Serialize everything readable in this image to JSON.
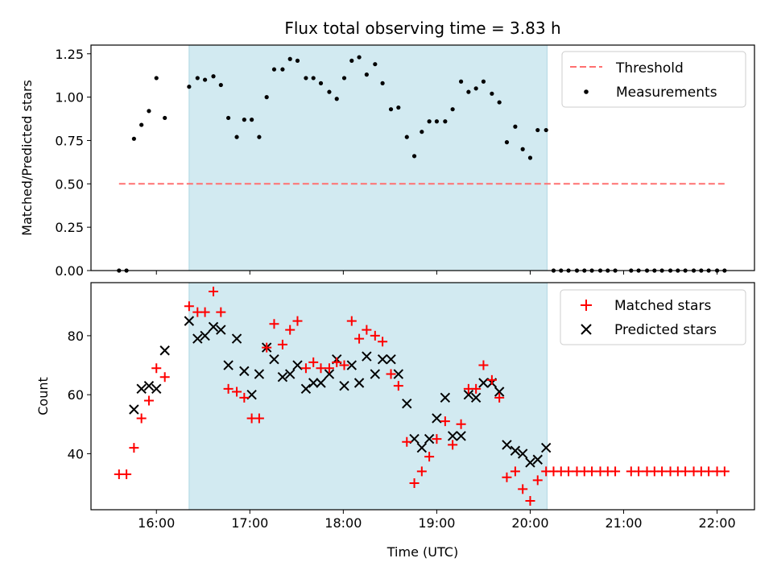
{
  "title": "Flux total observing time = 3.83 h",
  "colors": {
    "highlight": "#add8e6",
    "threshold": "#ff7070",
    "matched": "#ff0000",
    "predicted": "#000000",
    "measurement": "#000000"
  },
  "chart_data": [
    {
      "type": "scatter",
      "ylabel": "Matched/Predicted stars",
      "xlabel": "",
      "x_unit": "hours UTC",
      "xlim": [
        15.3,
        22.4
      ],
      "ylim": [
        0,
        1.3
      ],
      "xticks": [
        16,
        17,
        18,
        19,
        20,
        21,
        22
      ],
      "yticks": [
        0.0,
        0.25,
        0.5,
        0.75,
        1.0,
        1.25
      ],
      "ytick_labels": [
        "0.00",
        "0.25",
        "0.50",
        "0.75",
        "1.00",
        "1.25"
      ],
      "highlight_span": [
        16.35,
        20.18
      ],
      "legend": {
        "position": "top-right",
        "entries": [
          "Threshold",
          "Measurements"
        ]
      },
      "threshold": {
        "name": "Threshold",
        "value": 0.5,
        "x_range": [
          15.6,
          22.1
        ]
      },
      "series": [
        {
          "name": "Measurements",
          "points": [
            [
              15.6,
              0.0
            ],
            [
              15.68,
              0.0
            ],
            [
              15.76,
              0.76
            ],
            [
              15.84,
              0.84
            ],
            [
              15.92,
              0.92
            ],
            [
              16.0,
              1.11
            ],
            [
              16.09,
              0.88
            ],
            [
              16.35,
              1.06
            ],
            [
              16.44,
              1.11
            ],
            [
              16.52,
              1.1
            ],
            [
              16.61,
              1.12
            ],
            [
              16.69,
              1.07
            ],
            [
              16.77,
              0.88
            ],
            [
              16.86,
              0.77
            ],
            [
              16.94,
              0.87
            ],
            [
              17.02,
              0.87
            ],
            [
              17.1,
              0.77
            ],
            [
              17.18,
              1.0
            ],
            [
              17.26,
              1.16
            ],
            [
              17.35,
              1.16
            ],
            [
              17.43,
              1.22
            ],
            [
              17.51,
              1.21
            ],
            [
              17.6,
              1.11
            ],
            [
              17.68,
              1.11
            ],
            [
              17.76,
              1.08
            ],
            [
              17.85,
              1.03
            ],
            [
              17.93,
              0.99
            ],
            [
              18.01,
              1.11
            ],
            [
              18.09,
              1.21
            ],
            [
              18.17,
              1.23
            ],
            [
              18.25,
              1.13
            ],
            [
              18.34,
              1.19
            ],
            [
              18.42,
              1.08
            ],
            [
              18.51,
              0.93
            ],
            [
              18.59,
              0.94
            ],
            [
              18.68,
              0.77
            ],
            [
              18.76,
              0.66
            ],
            [
              18.84,
              0.8
            ],
            [
              18.92,
              0.86
            ],
            [
              19.0,
              0.86
            ],
            [
              19.09,
              0.86
            ],
            [
              19.17,
              0.93
            ],
            [
              19.26,
              1.09
            ],
            [
              19.34,
              1.03
            ],
            [
              19.42,
              1.05
            ],
            [
              19.5,
              1.09
            ],
            [
              19.59,
              1.02
            ],
            [
              19.67,
              0.97
            ],
            [
              19.75,
              0.74
            ],
            [
              19.84,
              0.83
            ],
            [
              19.92,
              0.7
            ],
            [
              20.0,
              0.65
            ],
            [
              20.08,
              0.81
            ],
            [
              20.17,
              0.81
            ],
            [
              20.25,
              0.0
            ],
            [
              20.33,
              0.0
            ],
            [
              20.41,
              0.0
            ],
            [
              20.5,
              0.0
            ],
            [
              20.58,
              0.0
            ],
            [
              20.66,
              0.0
            ],
            [
              20.75,
              0.0
            ],
            [
              20.83,
              0.0
            ],
            [
              20.91,
              0.0
            ],
            [
              21.08,
              0.0
            ],
            [
              21.16,
              0.0
            ],
            [
              21.25,
              0.0
            ],
            [
              21.33,
              0.0
            ],
            [
              21.41,
              0.0
            ],
            [
              21.5,
              0.0
            ],
            [
              21.58,
              0.0
            ],
            [
              21.66,
              0.0
            ],
            [
              21.75,
              0.0
            ],
            [
              21.83,
              0.0
            ],
            [
              21.91,
              0.0
            ],
            [
              22.0,
              0.0
            ],
            [
              22.08,
              0.0
            ]
          ]
        }
      ]
    },
    {
      "type": "scatter",
      "ylabel": "Count",
      "xlabel": "Time (UTC)",
      "x_unit": "hours UTC",
      "xlim": [
        15.3,
        22.4
      ],
      "ylim": [
        21,
        98
      ],
      "xticks": [
        16,
        17,
        18,
        19,
        20,
        21,
        22
      ],
      "xtick_labels": [
        "16:00",
        "17:00",
        "18:00",
        "19:00",
        "20:00",
        "21:00",
        "22:00"
      ],
      "yticks": [
        40,
        60,
        80
      ],
      "ytick_labels": [
        "40",
        "60",
        "80"
      ],
      "highlight_span": [
        16.35,
        20.18
      ],
      "legend": {
        "position": "top-right",
        "entries": [
          "Matched stars",
          "Predicted stars"
        ]
      },
      "series": [
        {
          "name": "Matched stars",
          "marker": "plus",
          "points": [
            [
              15.6,
              33
            ],
            [
              15.68,
              33
            ],
            [
              15.76,
              42
            ],
            [
              15.84,
              52
            ],
            [
              15.92,
              58
            ],
            [
              16.0,
              69
            ],
            [
              16.09,
              66
            ],
            [
              16.35,
              90
            ],
            [
              16.44,
              88
            ],
            [
              16.52,
              88
            ],
            [
              16.61,
              95
            ],
            [
              16.69,
              88
            ],
            [
              16.77,
              62
            ],
            [
              16.86,
              61
            ],
            [
              16.94,
              59
            ],
            [
              17.02,
              52
            ],
            [
              17.1,
              52
            ],
            [
              17.18,
              76
            ],
            [
              17.26,
              84
            ],
            [
              17.35,
              77
            ],
            [
              17.43,
              82
            ],
            [
              17.51,
              85
            ],
            [
              17.6,
              69
            ],
            [
              17.68,
              71
            ],
            [
              17.76,
              69
            ],
            [
              17.85,
              69
            ],
            [
              17.93,
              71
            ],
            [
              18.01,
              70
            ],
            [
              18.09,
              85
            ],
            [
              18.17,
              79
            ],
            [
              18.25,
              82
            ],
            [
              18.34,
              80
            ],
            [
              18.42,
              78
            ],
            [
              18.51,
              67
            ],
            [
              18.59,
              63
            ],
            [
              18.68,
              44
            ],
            [
              18.76,
              30
            ],
            [
              18.84,
              34
            ],
            [
              18.92,
              39
            ],
            [
              19.0,
              45
            ],
            [
              19.09,
              51
            ],
            [
              19.17,
              43
            ],
            [
              19.26,
              50
            ],
            [
              19.34,
              62
            ],
            [
              19.42,
              62
            ],
            [
              19.5,
              70
            ],
            [
              19.59,
              65
            ],
            [
              19.67,
              59
            ],
            [
              19.75,
              32
            ],
            [
              19.84,
              34
            ],
            [
              19.92,
              28
            ],
            [
              20.0,
              24
            ],
            [
              20.08,
              31
            ],
            [
              20.17,
              34
            ],
            [
              20.25,
              34
            ],
            [
              20.33,
              34
            ],
            [
              20.41,
              34
            ],
            [
              20.5,
              34
            ],
            [
              20.58,
              34
            ],
            [
              20.66,
              34
            ],
            [
              20.75,
              34
            ],
            [
              20.83,
              34
            ],
            [
              20.91,
              34
            ],
            [
              21.08,
              34
            ],
            [
              21.16,
              34
            ],
            [
              21.25,
              34
            ],
            [
              21.33,
              34
            ],
            [
              21.41,
              34
            ],
            [
              21.5,
              34
            ],
            [
              21.58,
              34
            ],
            [
              21.66,
              34
            ],
            [
              21.75,
              34
            ],
            [
              21.83,
              34
            ],
            [
              21.91,
              34
            ],
            [
              22.0,
              34
            ],
            [
              22.08,
              34
            ]
          ]
        },
        {
          "name": "Predicted stars",
          "marker": "x",
          "points": [
            [
              15.76,
              55
            ],
            [
              15.84,
              62
            ],
            [
              15.92,
              63
            ],
            [
              16.0,
              62
            ],
            [
              16.09,
              75
            ],
            [
              16.35,
              85
            ],
            [
              16.44,
              79
            ],
            [
              16.52,
              80
            ],
            [
              16.61,
              83
            ],
            [
              16.69,
              82
            ],
            [
              16.77,
              70
            ],
            [
              16.86,
              79
            ],
            [
              16.94,
              68
            ],
            [
              17.02,
              60
            ],
            [
              17.1,
              67
            ],
            [
              17.18,
              76
            ],
            [
              17.26,
              72
            ],
            [
              17.35,
              66
            ],
            [
              17.43,
              67
            ],
            [
              17.51,
              70
            ],
            [
              17.6,
              62
            ],
            [
              17.68,
              64
            ],
            [
              17.76,
              64
            ],
            [
              17.85,
              67
            ],
            [
              17.93,
              72
            ],
            [
              18.01,
              63
            ],
            [
              18.09,
              70
            ],
            [
              18.17,
              64
            ],
            [
              18.25,
              73
            ],
            [
              18.34,
              67
            ],
            [
              18.42,
              72
            ],
            [
              18.51,
              72
            ],
            [
              18.59,
              67
            ],
            [
              18.68,
              57
            ],
            [
              18.76,
              45
            ],
            [
              18.84,
              42
            ],
            [
              18.92,
              45
            ],
            [
              19.0,
              52
            ],
            [
              19.09,
              59
            ],
            [
              19.17,
              46
            ],
            [
              19.26,
              46
            ],
            [
              19.34,
              60
            ],
            [
              19.42,
              59
            ],
            [
              19.5,
              64
            ],
            [
              19.59,
              64
            ],
            [
              19.67,
              61
            ],
            [
              19.75,
              43
            ],
            [
              19.84,
              41
            ],
            [
              19.92,
              40
            ],
            [
              20.0,
              37
            ],
            [
              20.08,
              38
            ],
            [
              20.17,
              42
            ]
          ]
        }
      ]
    }
  ]
}
